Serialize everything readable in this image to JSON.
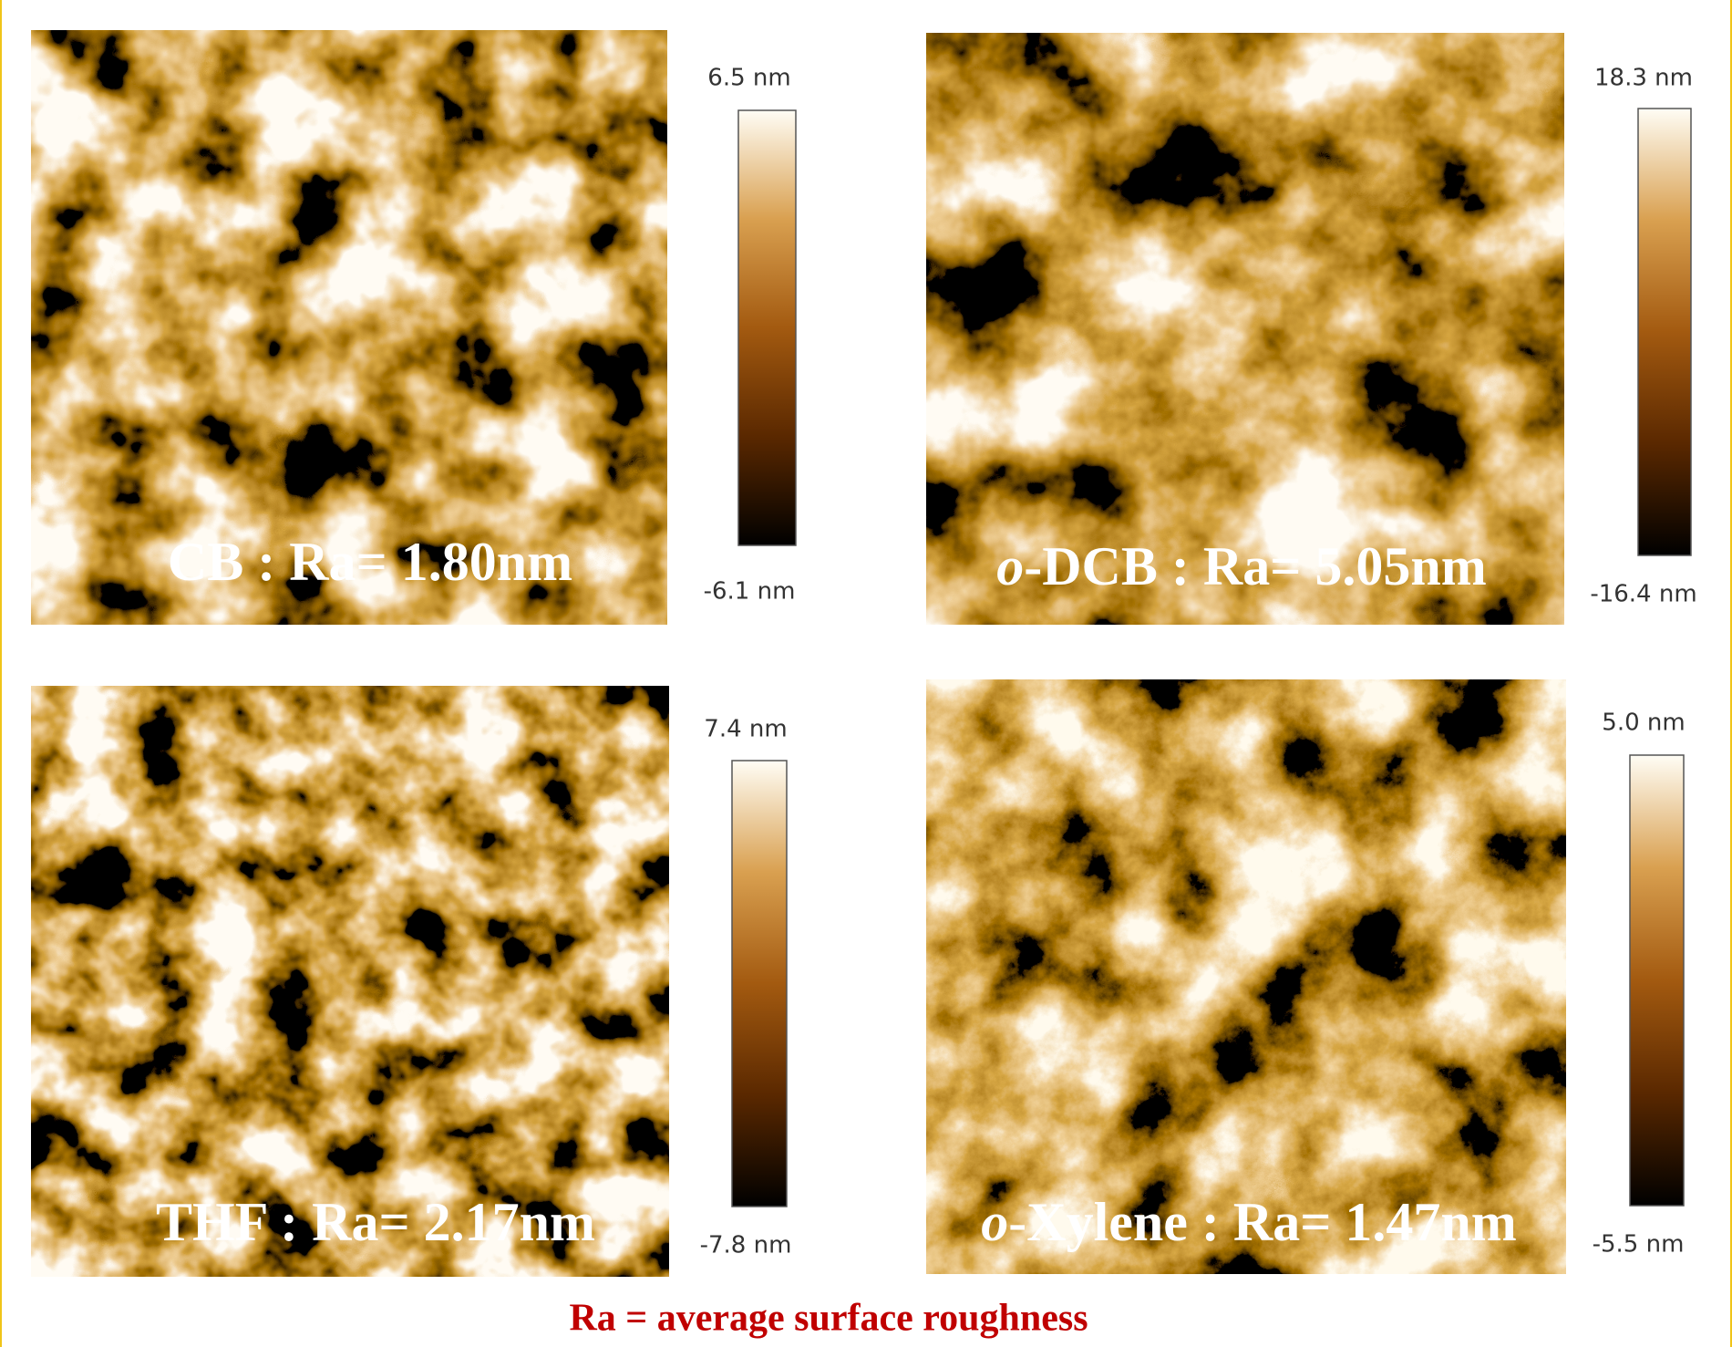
{
  "panels": [
    {
      "label": {
        "text": "CB : Ra= 1.80nm"
      },
      "scale_max": "6.5 nm",
      "scale_min": "-6.1 nm"
    },
    {
      "label": {
        "prefix": "o",
        "text": "-DCB : Ra= 5.05nm"
      },
      "scale_max": "18.3 nm",
      "scale_min": "-16.4 nm"
    },
    {
      "label": {
        "text": "THF : Ra= 2.17nm"
      },
      "scale_max": "7.4 nm",
      "scale_min": "-7.8 nm"
    },
    {
      "label": {
        "prefix": "o",
        "text": "-Xylene : Ra= 1.47nm"
      },
      "scale_max": "5.0 nm",
      "scale_min": "-5.5 nm"
    }
  ],
  "caption": "Ra = average surface roughness"
}
